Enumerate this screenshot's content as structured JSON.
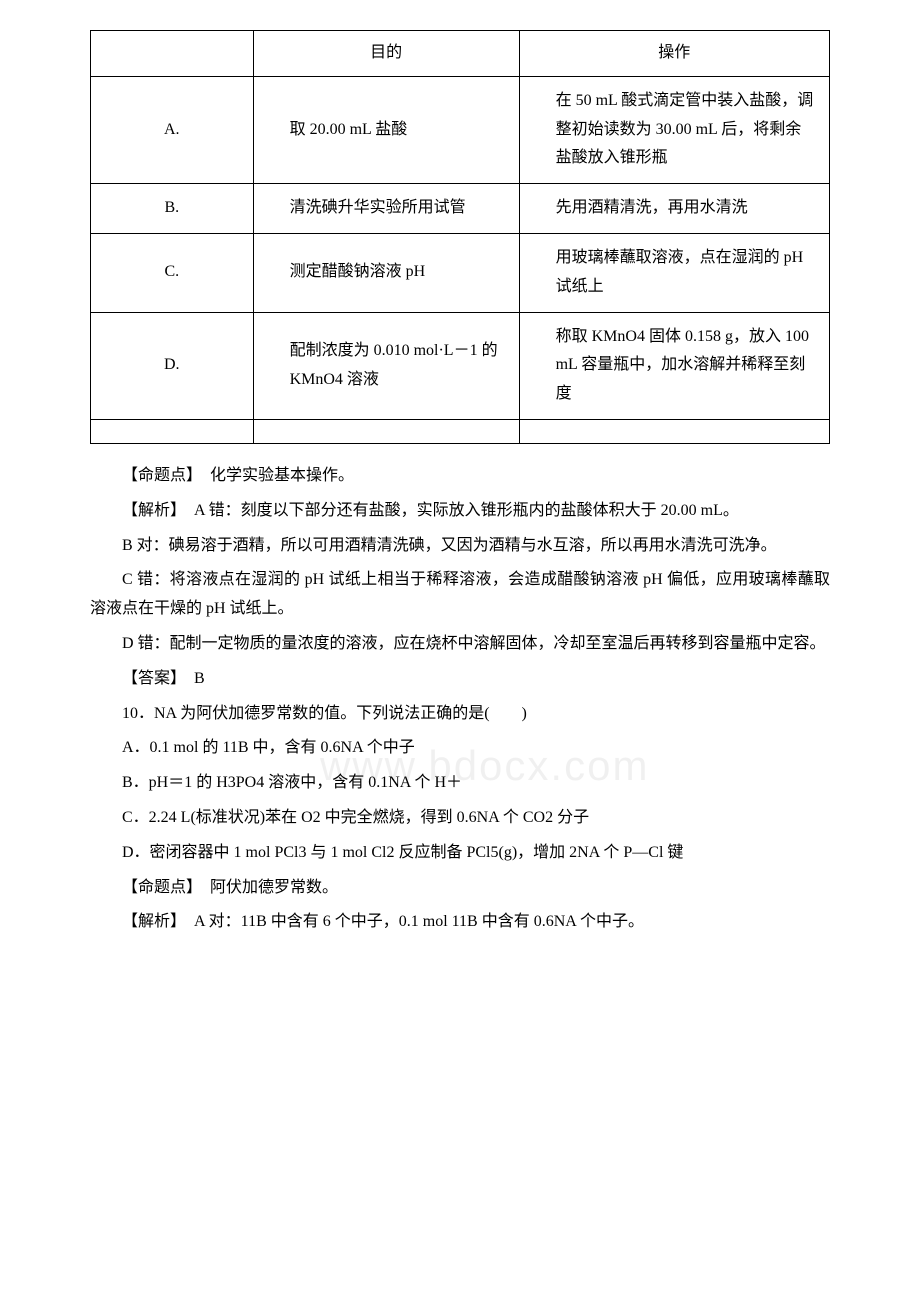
{
  "table": {
    "headers": {
      "col1": "",
      "col2": "目的",
      "col3": "操作"
    },
    "rows": [
      {
        "label": "A.",
        "purpose": "取 20.00 mL 盐酸",
        "operation": "在 50 mL 酸式滴定管中装入盐酸，调整初始读数为 30.00 mL 后，将剩余盐酸放入锥形瓶"
      },
      {
        "label": "B.",
        "purpose": "清洗碘升华实验所用试管",
        "operation": "先用酒精清洗，再用水清洗"
      },
      {
        "label": "C.",
        "purpose": "测定醋酸钠溶液 pH",
        "operation": "用玻璃棒蘸取溶液，点在湿润的 pH 试纸上"
      },
      {
        "label": "D.",
        "purpose": "配制浓度为 0.010 mol·L－1 的 KMnO4 溶液",
        "operation": "称取 KMnO4 固体 0.158 g，放入 100 mL 容量瓶中，加水溶解并稀释至刻度"
      }
    ]
  },
  "paragraphs": {
    "p1": "【命题点】　化学实验基本操作。",
    "p2": "【解析】　A 错：刻度以下部分还有盐酸，实际放入锥形瓶内的盐酸体积大于 20.00 mL。",
    "p3": "B 对：碘易溶于酒精，所以可用酒精清洗碘，又因为酒精与水互溶，所以再用水清洗可洗净。",
    "p4": "C 错：将溶液点在湿润的 pH 试纸上相当于稀释溶液，会造成醋酸钠溶液 pH 偏低，应用玻璃棒蘸取溶液点在干燥的 pH 试纸上。",
    "p5": "D 错：配制一定物质的量浓度的溶液，应在烧杯中溶解固体，冷却至室温后再转移到容量瓶中定容。",
    "p6": "【答案】　B",
    "p7": "10．NA 为阿伏加德罗常数的值。下列说法正确的是(　　)",
    "p8": "A．0.1 mol 的 11B 中，含有 0.6NA 个中子",
    "p9": "B．pH＝1 的 H3PO4 溶液中，含有 0.1NA 个 H＋",
    "p10": "C．2.24 L(标准状况)苯在 O2 中完全燃烧，得到 0.6NA 个 CO2 分子",
    "p11": "D．密闭容器中 1 mol PCl3 与 1 mol Cl2 反应制备 PCl5(g)，增加 2NA 个 P—Cl 键",
    "p12": "【命题点】　阿伏加德罗常数。",
    "p13": "【解析】　A 对：11B 中含有 6 个中子，0.1 mol 11B 中含有 0.6NA 个中子。"
  },
  "watermark": "www.bdocx.com"
}
